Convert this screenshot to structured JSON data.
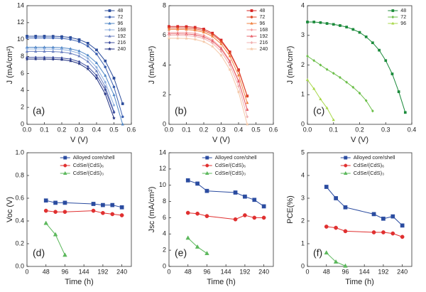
{
  "chart_data": [
    {
      "type": "line",
      "panel_label": "(a)",
      "xlabel": "V (V)",
      "ylabel": "J (mA/cm²)",
      "legend": "upper right",
      "x": [
        0,
        0.05,
        0.1,
        0.15,
        0.2,
        0.25,
        0.3,
        0.35,
        0.4,
        0.45,
        0.5,
        0.55,
        0.6
      ],
      "xlim": [
        0,
        0.6
      ],
      "xticks": [
        {
          "value": 0,
          "label": "0.0"
        },
        {
          "value": 0.1,
          "label": "0.1"
        },
        {
          "value": 0.2,
          "label": "0.2"
        },
        {
          "value": 0.3,
          "label": "0.3"
        },
        {
          "value": 0.4,
          "label": "0.4"
        },
        {
          "value": 0.5,
          "label": "0.5"
        },
        {
          "value": 0.6,
          "label": "0.6"
        }
      ],
      "ylim": [
        0,
        14
      ],
      "yticks": [
        0,
        2,
        4,
        6,
        8,
        10,
        12,
        14
      ],
      "series": [
        {
          "name": "48",
          "color": "#2b4c9b",
          "marker": "square",
          "values": [
            10.4,
            10.4,
            10.4,
            10.39,
            10.35,
            10.25,
            10.0,
            9.57,
            8.78,
            7.48,
            5.45,
            2.43,
            null
          ]
        },
        {
          "name": "72",
          "color": "#3a5fb0",
          "marker": "circle",
          "values": [
            10.2,
            10.2,
            10.2,
            10.19,
            10.14,
            10.02,
            9.75,
            9.23,
            8.3,
            6.77,
            4.41,
            0.89,
            null
          ]
        },
        {
          "name": "96",
          "color": "#4f86c6",
          "marker": "triangle",
          "values": [
            9.1,
            9.1,
            9.1,
            9.09,
            9.04,
            8.92,
            8.66,
            8.15,
            7.25,
            5.76,
            3.46,
            0,
            null
          ]
        },
        {
          "name": "168",
          "color": "#8fb0e0",
          "marker": "diamond",
          "values": [
            8.9,
            8.9,
            8.9,
            8.88,
            8.83,
            8.69,
            8.38,
            7.79,
            6.72,
            4.97,
            2.26,
            null,
            null
          ]
        },
        {
          "name": "192",
          "color": "#6a7fc0",
          "marker": "triangle",
          "values": [
            8.6,
            8.6,
            8.6,
            8.58,
            8.53,
            8.38,
            8.05,
            7.41,
            6.28,
            4.44,
            1.52,
            null,
            null
          ]
        },
        {
          "name": "216",
          "color": "#3f4f9f",
          "marker": "diamond",
          "values": [
            7.9,
            7.9,
            7.9,
            7.88,
            7.83,
            7.7,
            7.39,
            6.81,
            5.77,
            4.08,
            1.4,
            null,
            null
          ]
        },
        {
          "name": "240",
          "color": "#1f2f80",
          "marker": "star",
          "values": [
            7.7,
            7.7,
            7.7,
            7.68,
            7.63,
            7.48,
            7.16,
            6.53,
            5.42,
            3.58,
            0.73,
            null,
            null
          ]
        }
      ]
    },
    {
      "type": "line",
      "panel_label": "(b)",
      "xlabel": "V (V)",
      "ylabel": "J (mA/cm²)",
      "legend": "upper right",
      "x": [
        0,
        0.05,
        0.1,
        0.15,
        0.2,
        0.25,
        0.3,
        0.35,
        0.4,
        0.45,
        0.5,
        0.55,
        0.6
      ],
      "xlim": [
        0,
        0.6
      ],
      "xticks": [
        {
          "value": 0,
          "label": "0.0"
        },
        {
          "value": 0.1,
          "label": "0.1"
        },
        {
          "value": 0.2,
          "label": "0.2"
        },
        {
          "value": 0.3,
          "label": "0.3"
        },
        {
          "value": 0.4,
          "label": "0.4"
        },
        {
          "value": 0.5,
          "label": "0.5"
        },
        {
          "value": 0.6,
          "label": "0.6"
        }
      ],
      "ylim": [
        0,
        8
      ],
      "yticks": [
        0,
        2,
        4,
        6,
        8
      ],
      "series": [
        {
          "name": "48",
          "color": "#d62020",
          "marker": "square",
          "values": [
            6.6,
            6.6,
            6.59,
            6.54,
            6.42,
            6.15,
            5.68,
            4.88,
            3.68,
            1.91,
            null,
            null,
            null
          ]
        },
        {
          "name": "72",
          "color": "#e04a2a",
          "marker": "circle",
          "values": [
            6.5,
            6.5,
            6.49,
            6.44,
            6.32,
            6.06,
            5.59,
            4.81,
            3.62,
            1.89,
            null,
            null,
            null
          ]
        },
        {
          "name": "96",
          "color": "#f08040",
          "marker": "triangle",
          "values": [
            6.4,
            6.4,
            6.39,
            6.34,
            6.21,
            5.93,
            5.42,
            4.6,
            3.31,
            1.45,
            null,
            null,
            null
          ]
        },
        {
          "name": "168",
          "color": "#f4a0a0",
          "marker": "diamond",
          "values": [
            6.2,
            6.2,
            6.19,
            6.14,
            6.0,
            5.7,
            5.17,
            4.29,
            2.95,
            1.0,
            null,
            null,
            null
          ]
        },
        {
          "name": "192",
          "color": "#e8606a",
          "marker": "triangle",
          "values": [
            6.1,
            6.1,
            6.09,
            6.04,
            5.9,
            5.61,
            5.09,
            4.22,
            2.9,
            0.98,
            null,
            null,
            null
          ]
        },
        {
          "name": "216",
          "color": "#f0b0b0",
          "marker": "diamond",
          "values": [
            6.0,
            6.0,
            5.99,
            5.93,
            5.79,
            5.48,
            4.92,
            3.99,
            2.57,
            0.51,
            null,
            null,
            null
          ]
        },
        {
          "name": "240",
          "color": "#f5c8a8",
          "marker": "star",
          "values": [
            5.8,
            5.8,
            5.79,
            5.73,
            5.57,
            5.25,
            4.65,
            3.68,
            2.18,
            0,
            null,
            null,
            null
          ]
        }
      ]
    },
    {
      "type": "line",
      "panel_label": "(c)",
      "xlabel": "V (V)",
      "ylabel": "J (mA/cm²)",
      "legend": "upper right",
      "x": [
        0,
        0.025,
        0.05,
        0.075,
        0.1,
        0.125,
        0.15,
        0.175,
        0.2,
        0.225,
        0.25,
        0.275,
        0.3,
        0.325,
        0.35,
        0.375,
        0.4
      ],
      "xlim": [
        0,
        0.4
      ],
      "xticks": [
        {
          "value": 0,
          "label": "0.0"
        },
        {
          "value": 0.1,
          "label": "0.1"
        },
        {
          "value": 0.2,
          "label": "0.2"
        },
        {
          "value": 0.3,
          "label": "0.3"
        },
        {
          "value": 0.4,
          "label": "0.4"
        }
      ],
      "ylim": [
        0,
        4
      ],
      "yticks": [
        0,
        1,
        2,
        3,
        4
      ],
      "series": [
        {
          "name": "48",
          "color": "#1a8a3a",
          "marker": "square",
          "values": [
            3.45,
            3.45,
            3.43,
            3.4,
            3.37,
            3.33,
            3.28,
            3.2,
            3.1,
            2.95,
            2.75,
            2.5,
            2.15,
            1.7,
            1.1,
            0.4,
            null
          ]
        },
        {
          "name": "72",
          "color": "#6cbf4a",
          "marker": "diamond",
          "values": [
            2.3,
            2.15,
            2.0,
            1.85,
            1.72,
            1.58,
            1.42,
            1.25,
            1.05,
            0.8,
            0.45,
            null,
            null,
            null,
            null,
            null,
            null
          ]
        },
        {
          "name": "96",
          "color": "#a8d84a",
          "marker": "triangle",
          "values": [
            1.5,
            1.2,
            0.85,
            0.55,
            0.15,
            null,
            null,
            null,
            null,
            null,
            null,
            null,
            null,
            null,
            null,
            null,
            null
          ]
        }
      ]
    },
    {
      "type": "line",
      "panel_label": "(d)",
      "xlabel": "Time (h)",
      "ylabel": "Voc (V)",
      "legend": "upper right",
      "x": [
        48,
        72,
        96,
        168,
        192,
        216,
        240
      ],
      "xlim": [
        0,
        264
      ],
      "xticks": [
        0,
        48,
        96,
        144,
        192,
        240
      ],
      "ylim": [
        0,
        1
      ],
      "yticks": [
        {
          "value": 0,
          "label": "0.0"
        },
        {
          "value": 0.2,
          "label": "0.2"
        },
        {
          "value": 0.4,
          "label": "0.4"
        },
        {
          "value": 0.6,
          "label": "0.6"
        },
        {
          "value": 0.8,
          "label": "0.8"
        },
        {
          "value": 1,
          "label": "1.0"
        }
      ],
      "series": [
        {
          "name": "Alloyed core/shell",
          "color": "#2b4ca0",
          "marker": "square",
          "values": [
            0.58,
            0.56,
            0.56,
            0.55,
            0.54,
            0.54,
            0.52
          ]
        },
        {
          "name": "CdSe/(CdS)₆",
          "color": "#e03030",
          "marker": "circle",
          "values": [
            0.49,
            0.48,
            0.48,
            0.49,
            0.47,
            0.46,
            0.45
          ]
        },
        {
          "name": "CdSe/(CdS)₃",
          "color": "#5cb85c",
          "marker": "triangle",
          "values": [
            0.38,
            0.28,
            0.1,
            null,
            null,
            null,
            null
          ]
        }
      ]
    },
    {
      "type": "line",
      "panel_label": "(e)",
      "xlabel": "Time (h)",
      "ylabel": "Jsc (mA/cm²)",
      "legend": "upper right",
      "x": [
        48,
        72,
        96,
        168,
        192,
        216,
        240
      ],
      "xlim": [
        0,
        264
      ],
      "xticks": [
        0,
        48,
        96,
        144,
        192,
        240
      ],
      "ylim": [
        0,
        14
      ],
      "yticks": [
        0,
        2,
        4,
        6,
        8,
        10,
        12,
        14
      ],
      "series": [
        {
          "name": "Alloyed core/shell",
          "color": "#2b4ca0",
          "marker": "square",
          "values": [
            10.6,
            10.2,
            9.3,
            9.1,
            8.6,
            8.2,
            7.4
          ]
        },
        {
          "name": "CdSe/(CdS)₆",
          "color": "#e03030",
          "marker": "circle",
          "values": [
            6.6,
            6.5,
            6.2,
            5.8,
            6.3,
            6.0,
            6.0
          ]
        },
        {
          "name": "CdSe/(CdS)₃",
          "color": "#5cb85c",
          "marker": "triangle",
          "values": [
            3.5,
            2.4,
            1.6,
            null,
            null,
            null,
            null
          ]
        }
      ]
    },
    {
      "type": "line",
      "panel_label": "(f)",
      "xlabel": "Time (h)",
      "ylabel": "PCE(%)",
      "legend": "upper right",
      "x": [
        48,
        72,
        96,
        168,
        192,
        216,
        240
      ],
      "xlim": [
        0,
        264
      ],
      "xticks": [
        0,
        48,
        96,
        144,
        192,
        240
      ],
      "ylim": [
        0,
        5
      ],
      "yticks": [
        0,
        1,
        2,
        3,
        4,
        5
      ],
      "series": [
        {
          "name": "Alloyed core/shell",
          "color": "#2b4ca0",
          "marker": "square",
          "values": [
            3.5,
            3.0,
            2.6,
            2.3,
            2.1,
            2.2,
            1.8
          ]
        },
        {
          "name": "CdSe/(CdS)₆",
          "color": "#e03030",
          "marker": "circle",
          "values": [
            1.75,
            1.7,
            1.55,
            1.5,
            1.5,
            1.45,
            1.3
          ]
        },
        {
          "name": "CdSe/(CdS)₃",
          "color": "#5cb85c",
          "marker": "triangle",
          "values": [
            0.6,
            0.2,
            0.02,
            null,
            null,
            null,
            null
          ]
        }
      ]
    }
  ]
}
